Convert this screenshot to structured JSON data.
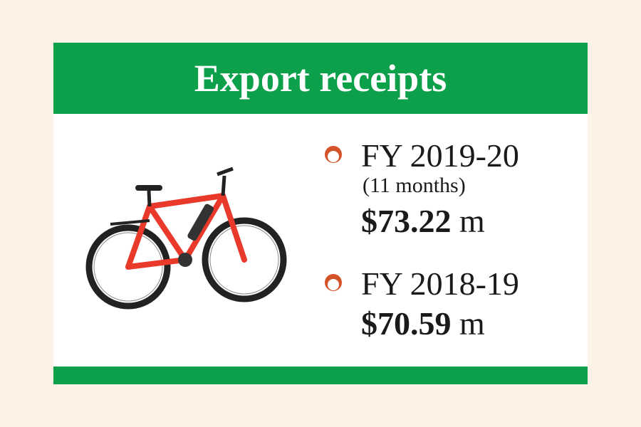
{
  "title": "Export receipts",
  "image": "electric-bicycle",
  "colors": {
    "green": "#0da04b",
    "bullet": "#d4522a",
    "background": "#fdf2e6"
  },
  "entries": [
    {
      "label": "FY 2019-20",
      "note": "(11 months)",
      "amount": "$73.22",
      "unit": "m"
    },
    {
      "label": "FY 2018-19",
      "amount": "$70.59",
      "unit": "m"
    }
  ]
}
